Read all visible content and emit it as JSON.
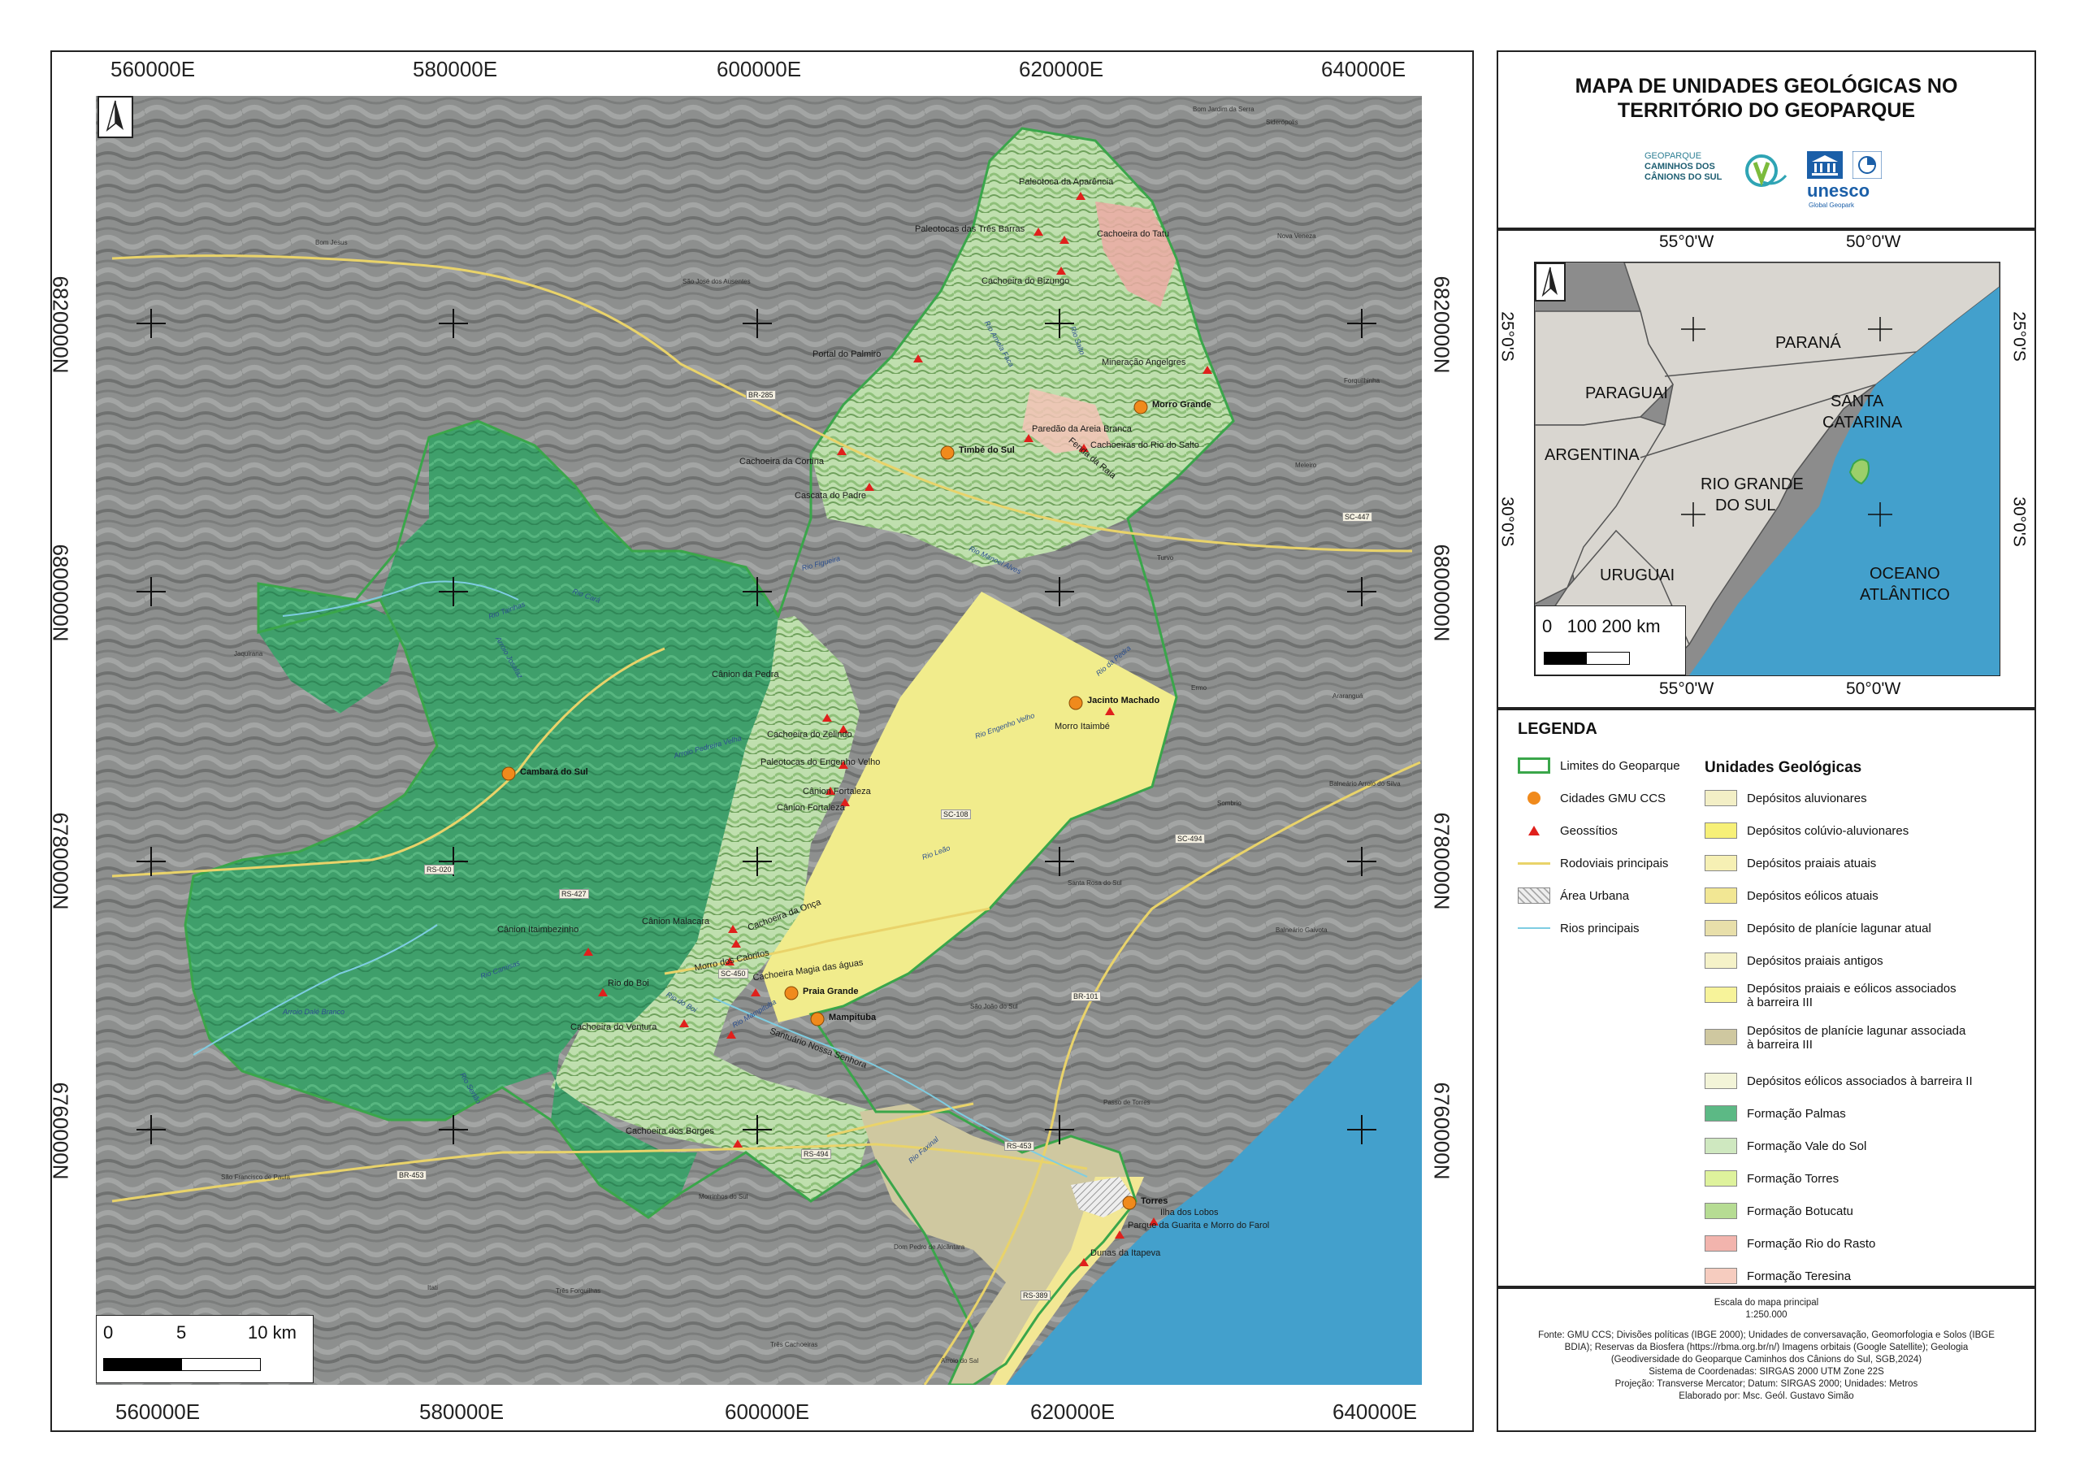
{
  "main_map": {
    "coords_top": [
      "560000E",
      "580000E",
      "600000E",
      "620000E",
      "640000E"
    ],
    "coords_bottom": [
      "560000E",
      "580000E",
      "600000E",
      "620000E",
      "640000E"
    ],
    "coords_left": [
      "6820000N",
      "6800000N",
      "6780000N",
      "6760000N"
    ],
    "coords_right": [
      "6820000N",
      "6800000N",
      "6780000N",
      "6760000N"
    ],
    "scale": {
      "zero": "0",
      "mid": "5",
      "end": "10 km"
    },
    "cities": [
      {
        "name": "Morro Grande"
      },
      {
        "name": "Timbé do Sul"
      },
      {
        "name": "Jacinto Machado"
      },
      {
        "name": "Cambará do Sul"
      },
      {
        "name": "Praia Grande"
      },
      {
        "name": "Mampituba"
      },
      {
        "name": "Torres"
      }
    ],
    "geosites": [
      "Paleotoca da Aparência",
      "Paleotocas das Três Barras",
      "Cachoeira do Tatu",
      "Cachoeira do Bizungo",
      "Portal do Palmiro",
      "Mineração Angelgres",
      "Paredão da Areia Branca",
      "Cachoeiras do Rio do Salto",
      "Cachoeira da Cortina",
      "Cascata do Padre",
      "Fenda da Raia",
      "Cânion da Pedra",
      "Cachoeira do Zelindo",
      "Paleotocas do Engenho Velho",
      "Cânion Fortaleza",
      "Cânion Fortaleza",
      "Morro Itaimbé",
      "Cânion Itaimbezinho",
      "Cânion Malacara",
      "Cachoeira da Onça",
      "Morro dos Cabritos",
      "Cachoeira Magia das águas",
      "Rio do Boi",
      "Cachoeira do Ventura",
      "Santuário Nossa Senhora",
      "Cachoeira dos Borges",
      "Ilha dos Lobos",
      "Parque da Guarita e Morro do Farol",
      "Dunas da Itapeva"
    ],
    "roads": [
      "BR-285",
      "SC-447",
      "SC-108",
      "SC-494",
      "RS-020",
      "RS-427",
      "SC-450",
      "BR-101",
      "RS-494",
      "BR-453",
      "RS-453",
      "RS-389"
    ],
    "places": [
      "Bom Jardim da Serra",
      "Siderópolis",
      "Bom Jesus",
      "Nova Veneza",
      "São José dos Ausentes",
      "Forquilhinha",
      "Meleiro",
      "Turvo",
      "Ermo",
      "Araranguá",
      "Jaquirana",
      "Sombrio",
      "Balneário Arroio do Silva",
      "Santa Rosa do Sul",
      "Balneário Gaivota",
      "São João do Sul",
      "Passo de Torres",
      "São Francisco de Paula",
      "Morrinhos do Sul",
      "Dom Pedro de Alcântara",
      "Três Forquilhas",
      "Itati",
      "Três Cachoeiras",
      "Arroio do Sal"
    ],
    "rivers": [
      "Rio Camisas",
      "Rio Tainhas",
      "Arroio Josafaz",
      "Rio Cará",
      "Arroio Pedreira Velha",
      "Rio Mampituba",
      "Rio Sertão",
      "Rio do Boi",
      "Rio Leão",
      "Rio da Pedra",
      "Rio Engenho Velho",
      "Rio Amola Faca",
      "Rio Salto",
      "Rio Figueira",
      "Rio Manoel Alves",
      "Arroio Dalé Branco",
      "Rio Faxinal"
    ]
  },
  "title": {
    "line1": "MAPA DE UNIDADES GEOLÓGICAS NO",
    "line2": "TERRITÓRIO DO GEOPARQUE",
    "logo_geopark_l1": "GEOPARQUE",
    "logo_geopark_l2": "CAMINHOS DOS",
    "logo_geopark_l3": "CÂNIONS DO SUL",
    "logo_unesco": "unesco",
    "logo_unesco_sub": "Global Geopark"
  },
  "inset": {
    "lon_top": [
      "55°0'W",
      "50°0'W"
    ],
    "lon_bottom": [
      "55°0'W",
      "50°0'W"
    ],
    "lat_left": [
      "25°0'S",
      "30°0'S"
    ],
    "lat_right": [
      "25°0'S",
      "30°0'S"
    ],
    "labels": {
      "parana": "PARANÁ",
      "paraguai": "PARAGUAI",
      "santa_catarina_1": "SANTA",
      "santa_catarina_2": "CATARINA",
      "argentina": "ARGENTINA",
      "rio_grande_1": "RIO GRANDE",
      "rio_grande_2": "DO SUL",
      "uruguai": "URUGUAI",
      "oceano_1": "OCEANO",
      "oceano_2": "ATLÂNTICO"
    },
    "scale": "0   100 200 km"
  },
  "legend": {
    "title": "LEGENDA",
    "general": [
      {
        "label": "Limites do Geoparque",
        "symbol": "outline-green"
      },
      {
        "label": "Cidades GMU CCS",
        "symbol": "orange-dot"
      },
      {
        "label": "Geossítios",
        "symbol": "red-triangle"
      },
      {
        "label": "Rodoviais principais",
        "symbol": "yellow-line"
      },
      {
        "label": "Área Urbana",
        "symbol": "hatch"
      },
      {
        "label": "Rios principais",
        "symbol": "blue-line"
      }
    ],
    "units_title": "Unidades Geológicas",
    "units": [
      {
        "label": "Depósitos aluvionares",
        "color": "#f3efc6"
      },
      {
        "label": "Depósitos colúvio-aluvionares",
        "color": "#f7f078"
      },
      {
        "label": "Depósitos praiais atuais",
        "color": "#f6f0b4"
      },
      {
        "label": "Depósitos eólicos atuais",
        "color": "#f2e794"
      },
      {
        "label": "Depósito de planície lagunar atual",
        "color": "#e8dfaa"
      },
      {
        "label": "Depósitos praiais antigos",
        "color": "#f5f2c8"
      },
      {
        "label": "Depósitos praiais e eólicos associados",
        "label2": "à barreira III",
        "color": "#f7f39a"
      },
      {
        "label": "Depósitos de planície lagunar associada",
        "label2": "à barreira III",
        "color": "#cfc8a0"
      },
      {
        "label": "Depósitos eólicos associados à barreira II",
        "color": "#f3f4d8"
      },
      {
        "label": "Formação Palmas",
        "color": "#5cb985"
      },
      {
        "label": "Formação Vale do Sol",
        "color": "#cfe8c0"
      },
      {
        "label": "Formação Torres",
        "color": "#def29c"
      },
      {
        "label": "Formação Botucatu",
        "color": "#b6dc93"
      },
      {
        "label": "Formação Rio do Rasto",
        "color": "#f2b4ad"
      },
      {
        "label": "Formação Teresina",
        "color": "#f6ccbf"
      }
    ]
  },
  "credits": {
    "scale_title": "Escala do mapa principal",
    "scale_value": "1:250.000",
    "line1": "Fonte: GMU CCS; Divisões políticas (IBGE 2000); Unidades de conversavação, Geomorfologia e Solos (IBGE",
    "line2": "BDIA); Reservas da Biosfera (https://rbma.org.br/n/) Imagens orbitais (Google Satellite); Geologia",
    "line3": "(Geodiversidade do Geoparque Caminhos dos Cânions do Sul, SGB,2024)",
    "line4": "Sistema de Coordenadas: SIRGAS 2000 UTM Zone 22S",
    "line5": "Projeção: Transverse Mercator; Datum: SIRGAS 2000; Unidades: Metros",
    "line6": "Elaborado por: Msc. Geól. Gustavo Simão"
  },
  "colors": {
    "ocean": "#43a0cc",
    "relief": "#8f9190",
    "palmas": "#3d9f6a",
    "boundary": "#3aa64a",
    "city": "#f08a1c",
    "geosite": "#e0201c",
    "road": "#e9d36a",
    "river": "#7ecde2"
  }
}
